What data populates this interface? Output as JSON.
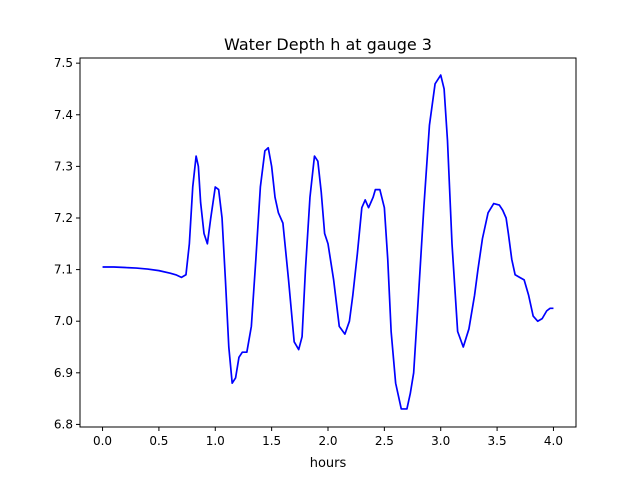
{
  "chart_data": {
    "type": "line",
    "title": "Water Depth h at gauge 3",
    "xlabel": "hours",
    "ylabel": "",
    "xlim": [
      -0.2,
      4.2
    ],
    "ylim": [
      6.795,
      7.51
    ],
    "xticks": [
      0.0,
      0.5,
      1.0,
      1.5,
      2.0,
      2.5,
      3.0,
      3.5,
      4.0
    ],
    "xtick_labels": [
      "0.0",
      "0.5",
      "1.0",
      "1.5",
      "2.0",
      "2.5",
      "3.0",
      "3.5",
      "4.0"
    ],
    "yticks": [
      6.8,
      6.9,
      7.0,
      7.1,
      7.2,
      7.3,
      7.4,
      7.5
    ],
    "ytick_labels": [
      "6.8",
      "6.9",
      "7.0",
      "7.1",
      "7.2",
      "7.3",
      "7.4",
      "7.5"
    ],
    "grid": false,
    "series": [
      {
        "color": "#0000ff",
        "x": [
          0.0,
          0.1,
          0.2,
          0.3,
          0.4,
          0.5,
          0.6,
          0.65,
          0.7,
          0.74,
          0.77,
          0.8,
          0.83,
          0.85,
          0.87,
          0.9,
          0.93,
          0.96,
          1.0,
          1.03,
          1.06,
          1.09,
          1.12,
          1.15,
          1.18,
          1.21,
          1.24,
          1.28,
          1.32,
          1.36,
          1.4,
          1.44,
          1.47,
          1.5,
          1.53,
          1.56,
          1.6,
          1.65,
          1.7,
          1.74,
          1.77,
          1.8,
          1.84,
          1.88,
          1.91,
          1.94,
          1.97,
          2.0,
          2.05,
          2.1,
          2.15,
          2.19,
          2.22,
          2.26,
          2.3,
          2.33,
          2.36,
          2.38,
          2.4,
          2.42,
          2.46,
          2.5,
          2.53,
          2.56,
          2.6,
          2.65,
          2.7,
          2.73,
          2.76,
          2.8,
          2.85,
          2.9,
          2.95,
          3.0,
          3.03,
          3.06,
          3.1,
          3.15,
          3.2,
          3.25,
          3.3,
          3.33,
          3.37,
          3.42,
          3.47,
          3.52,
          3.55,
          3.58,
          3.6,
          3.63,
          3.66,
          3.7,
          3.74,
          3.78,
          3.82,
          3.86,
          3.9,
          3.94,
          3.97,
          4.0
        ],
        "y": [
          7.105,
          7.105,
          7.104,
          7.103,
          7.101,
          7.098,
          7.093,
          7.09,
          7.085,
          7.09,
          7.15,
          7.26,
          7.32,
          7.3,
          7.23,
          7.17,
          7.15,
          7.2,
          7.26,
          7.255,
          7.2,
          7.08,
          6.95,
          6.88,
          6.89,
          6.93,
          6.94,
          6.94,
          6.99,
          7.12,
          7.26,
          7.33,
          7.336,
          7.3,
          7.24,
          7.21,
          7.19,
          7.08,
          6.96,
          6.945,
          6.97,
          7.1,
          7.24,
          7.32,
          7.31,
          7.25,
          7.17,
          7.15,
          7.08,
          6.99,
          6.975,
          7.0,
          7.05,
          7.13,
          7.22,
          7.235,
          7.22,
          7.23,
          7.24,
          7.255,
          7.255,
          7.22,
          7.12,
          6.98,
          6.88,
          6.83,
          6.83,
          6.86,
          6.9,
          7.04,
          7.22,
          7.38,
          7.46,
          7.477,
          7.45,
          7.35,
          7.15,
          6.98,
          6.95,
          6.985,
          7.05,
          7.1,
          7.16,
          7.21,
          7.228,
          7.225,
          7.215,
          7.2,
          7.17,
          7.12,
          7.09,
          7.085,
          7.08,
          7.05,
          7.01,
          7.0,
          7.005,
          7.02,
          7.025,
          7.025
        ]
      }
    ]
  }
}
